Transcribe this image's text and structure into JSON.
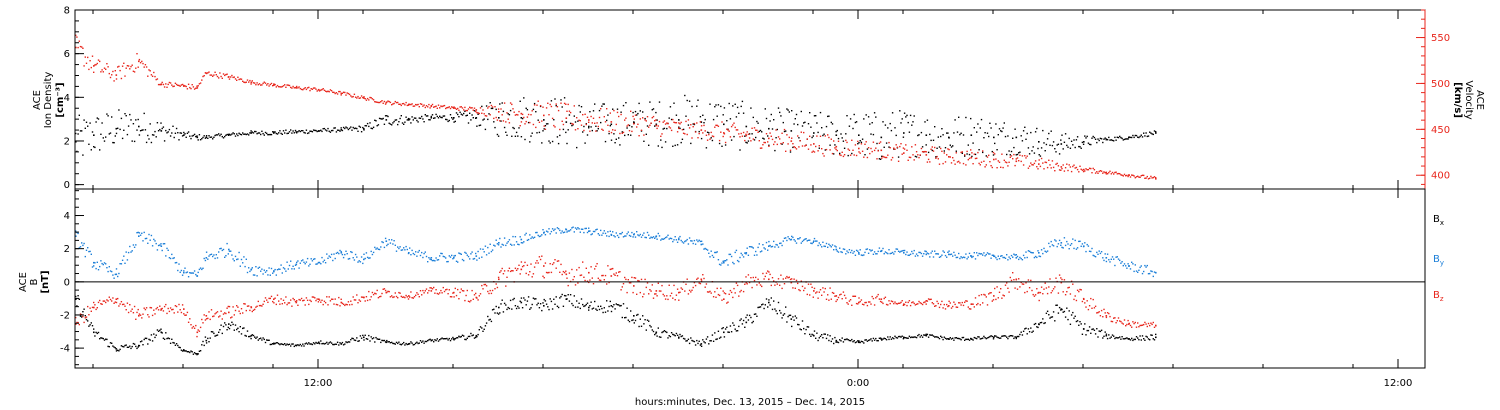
{
  "colors": {
    "black": "#000000",
    "blue": "#1c7fd8",
    "red": "#e8261c",
    "frame": "#000000"
  },
  "xlabel": "hours:minutes, Dec. 13, 2015 – Dec. 14, 2015",
  "chart_data": [
    {
      "type": "scatter",
      "panel": "top",
      "ylabel_left": [
        "ACE",
        "Ion Density",
        "[cm⁻³]"
      ],
      "ylabel_right": [
        "ACE",
        "Velocity",
        "[km/s]"
      ],
      "x_ticks_hours": [
        12,
        24,
        36
      ],
      "x_tick_labels": [
        "12:00",
        "0:00",
        "12:00"
      ],
      "xlim_hours": [
        6.6,
        36.6
      ],
      "left_axis": {
        "ylim": [
          -0.2,
          8.0
        ],
        "ticks": [
          0,
          2,
          4,
          6,
          8
        ]
      },
      "right_axis": {
        "ylim": [
          385,
          580
        ],
        "ticks": [
          400,
          450,
          500,
          550
        ]
      },
      "grid": false,
      "series": [
        {
          "axis": "left",
          "color": "#000000",
          "x": [
            6.6,
            7.0,
            7.5,
            8.0,
            8.5,
            9.0,
            9.3,
            9.5,
            10.0,
            10.5,
            11.0,
            11.5,
            12.0,
            12.5,
            13.0,
            13.5,
            14.0,
            14.5,
            15.0,
            15.5,
            16.0,
            16.5,
            17.0,
            17.5,
            18.0,
            18.5,
            19.0,
            19.5,
            20.0,
            20.5,
            21.0,
            21.5,
            22.0,
            22.5,
            23.0,
            23.5,
            24.0,
            24.5,
            25.0,
            25.5,
            26.0,
            26.5,
            27.0,
            27.5,
            28.0,
            28.5,
            29.0,
            29.5,
            30.0,
            30.6
          ],
          "y": [
            2.0,
            2.3,
            2.6,
            2.7,
            2.5,
            2.3,
            2.2,
            2.2,
            2.3,
            2.4,
            2.4,
            2.45,
            2.5,
            2.55,
            2.6,
            3.0,
            3.0,
            3.1,
            3.1,
            3.1,
            3.1,
            3.1,
            3.0,
            2.9,
            2.7,
            2.8,
            2.9,
            2.8,
            3.0,
            2.9,
            2.8,
            2.7,
            2.6,
            2.5,
            2.4,
            2.3,
            2.3,
            2.2,
            2.4,
            2.3,
            2.2,
            2.3,
            2.2,
            2.2,
            2.0,
            1.9,
            2.0,
            2.1,
            2.2,
            2.4
          ],
          "spread": [
            1.2,
            1.0,
            0.9,
            0.8,
            0.5,
            0.2,
            0.15,
            0.1,
            0.1,
            0.1,
            0.1,
            0.1,
            0.1,
            0.1,
            0.15,
            0.3,
            0.2,
            0.15,
            0.2,
            0.4,
            0.9,
            1.1,
            1.1,
            1.2,
            1.1,
            1.0,
            1.0,
            1.1,
            1.2,
            1.2,
            1.3,
            1.1,
            1.0,
            1.0,
            1.0,
            1.0,
            1.1,
            1.2,
            1.1,
            1.0,
            1.0,
            1.0,
            0.9,
            0.8,
            0.7,
            0.5,
            0.3,
            0.1,
            0.1,
            0.1
          ]
        },
        {
          "axis": "right",
          "color": "#e8261c",
          "x": [
            6.6,
            7.0,
            7.5,
            8.0,
            8.5,
            9.0,
            9.3,
            9.5,
            10.0,
            10.5,
            11.0,
            11.5,
            12.0,
            12.5,
            13.0,
            13.5,
            14.0,
            14.5,
            15.0,
            15.5,
            16.0,
            16.5,
            17.0,
            17.5,
            18.0,
            18.5,
            19.0,
            19.5,
            20.0,
            20.5,
            21.0,
            21.5,
            22.0,
            22.5,
            23.0,
            23.5,
            24.0,
            24.5,
            25.0,
            25.5,
            26.0,
            26.5,
            27.0,
            27.5,
            28.0,
            28.5,
            29.0,
            29.5,
            30.0,
            30.6
          ],
          "y": [
            540,
            520,
            510,
            525,
            500,
            498,
            496,
            512,
            508,
            502,
            499,
            496,
            494,
            490,
            485,
            480,
            478,
            476,
            474,
            472,
            470,
            468,
            466,
            463,
            461,
            459,
            457,
            455,
            452,
            450,
            447,
            444,
            441,
            438,
            435,
            432,
            430,
            428,
            425,
            423,
            421,
            420,
            418,
            416,
            413,
            410,
            407,
            404,
            401,
            397
          ],
          "spread": [
            14,
            10,
            8,
            10,
            3,
            3,
            3,
            3,
            3,
            2,
            2,
            2,
            2,
            2,
            2,
            2,
            2,
            2,
            2,
            3,
            10,
            14,
            16,
            16,
            15,
            14,
            13,
            12,
            10,
            10,
            12,
            12,
            12,
            12,
            12,
            12,
            10,
            10,
            10,
            10,
            9,
            9,
            9,
            8,
            7,
            5,
            3,
            2,
            2,
            2
          ]
        }
      ]
    },
    {
      "type": "scatter",
      "panel": "bottom",
      "ylabel_left": [
        "ACE",
        "B",
        "[nT]"
      ],
      "x_ticks_hours": [
        12,
        24,
        36
      ],
      "x_tick_labels": [
        "12:00",
        "0:00",
        "12:00"
      ],
      "xlim_hours": [
        6.6,
        36.6
      ],
      "left_axis": {
        "ylim": [
          -5.2,
          5.6
        ],
        "ticks": [
          -4,
          -2,
          0,
          2,
          4
        ]
      },
      "zero_line": 0,
      "grid": false,
      "legend_position": "right",
      "series": [
        {
          "name": "Bx",
          "label_main": "B",
          "label_sub": "x",
          "color": "#000000",
          "x": [
            6.6,
            7.0,
            7.5,
            8.0,
            8.5,
            9.0,
            9.3,
            9.5,
            10.0,
            10.5,
            11.0,
            11.5,
            12.0,
            12.5,
            13.0,
            13.5,
            14.0,
            14.5,
            15.0,
            15.5,
            16.0,
            16.5,
            17.0,
            17.5,
            18.0,
            18.5,
            19.0,
            19.5,
            20.0,
            20.5,
            21.0,
            21.5,
            22.0,
            22.5,
            23.0,
            23.5,
            24.0,
            24.5,
            25.0,
            25.5,
            26.0,
            26.5,
            27.0,
            27.5,
            28.0,
            28.5,
            29.0,
            29.5,
            30.0,
            30.6
          ],
          "y": [
            -1.0,
            -3.0,
            -4.0,
            -3.8,
            -3.0,
            -4.1,
            -4.3,
            -3.5,
            -2.5,
            -3.2,
            -3.7,
            -3.8,
            -3.6,
            -3.7,
            -3.3,
            -3.6,
            -3.7,
            -3.5,
            -3.4,
            -3.2,
            -1.5,
            -1.2,
            -1.4,
            -1.0,
            -1.5,
            -1.4,
            -2.0,
            -3.0,
            -3.3,
            -3.7,
            -3.0,
            -2.4,
            -1.2,
            -2.2,
            -3.2,
            -3.5,
            -3.6,
            -3.4,
            -3.3,
            -3.2,
            -3.4,
            -3.4,
            -3.3,
            -3.3,
            -2.5,
            -1.6,
            -2.8,
            -3.2,
            -3.4,
            -3.3
          ],
          "spread": [
            0.6,
            0.3,
            0.2,
            0.2,
            0.3,
            0.1,
            0.1,
            0.3,
            0.3,
            0.2,
            0.1,
            0.1,
            0.1,
            0.1,
            0.2,
            0.1,
            0.1,
            0.1,
            0.1,
            0.2,
            0.4,
            0.4,
            0.4,
            0.4,
            0.4,
            0.4,
            0.5,
            0.3,
            0.2,
            0.2,
            0.3,
            0.4,
            0.4,
            0.5,
            0.3,
            0.2,
            0.1,
            0.1,
            0.1,
            0.1,
            0.1,
            0.1,
            0.1,
            0.1,
            0.4,
            0.5,
            0.4,
            0.2,
            0.1,
            0.2
          ]
        },
        {
          "name": "By",
          "label_main": "B",
          "label_sub": "y",
          "color": "#1c7fd8",
          "x": [
            6.6,
            7.0,
            7.5,
            8.0,
            8.5,
            9.0,
            9.3,
            9.5,
            10.0,
            10.5,
            11.0,
            11.5,
            12.0,
            12.5,
            13.0,
            13.5,
            14.0,
            14.5,
            15.0,
            15.5,
            16.0,
            16.5,
            17.0,
            17.5,
            18.0,
            18.5,
            19.0,
            19.5,
            20.0,
            20.5,
            21.0,
            21.5,
            22.0,
            22.5,
            23.0,
            23.5,
            24.0,
            24.5,
            25.0,
            25.5,
            26.0,
            26.5,
            27.0,
            27.5,
            28.0,
            28.5,
            29.0,
            29.5,
            30.0,
            30.6
          ],
          "y": [
            2.8,
            1.2,
            0.5,
            2.8,
            2.2,
            0.6,
            0.4,
            1.5,
            2.0,
            0.8,
            0.7,
            1.1,
            1.2,
            1.8,
            1.4,
            2.5,
            1.8,
            1.5,
            1.5,
            1.6,
            2.4,
            2.6,
            3.0,
            3.2,
            3.1,
            2.9,
            2.9,
            2.8,
            2.6,
            2.3,
            1.2,
            1.8,
            2.2,
            2.6,
            2.5,
            2.0,
            1.8,
            1.9,
            1.8,
            1.7,
            1.7,
            1.6,
            1.6,
            1.5,
            1.8,
            2.4,
            2.2,
            1.5,
            1.0,
            0.6
          ],
          "spread": [
            0.4,
            0.4,
            0.3,
            0.4,
            0.4,
            0.3,
            0.3,
            0.4,
            0.4,
            0.4,
            0.3,
            0.3,
            0.3,
            0.3,
            0.3,
            0.3,
            0.3,
            0.3,
            0.3,
            0.3,
            0.3,
            0.3,
            0.2,
            0.2,
            0.2,
            0.2,
            0.2,
            0.2,
            0.2,
            0.3,
            0.4,
            0.4,
            0.3,
            0.2,
            0.2,
            0.2,
            0.2,
            0.2,
            0.2,
            0.2,
            0.2,
            0.2,
            0.2,
            0.2,
            0.3,
            0.4,
            0.3,
            0.3,
            0.3,
            0.3
          ]
        },
        {
          "name": "Bz",
          "label_main": "B",
          "label_sub": "z",
          "color": "#e8261c",
          "x": [
            6.6,
            7.0,
            7.5,
            8.0,
            8.5,
            9.0,
            9.3,
            9.5,
            10.0,
            10.5,
            11.0,
            11.5,
            12.0,
            12.5,
            13.0,
            13.5,
            14.0,
            14.5,
            15.0,
            15.5,
            16.0,
            16.5,
            17.0,
            17.5,
            18.0,
            18.5,
            19.0,
            19.5,
            20.0,
            20.5,
            21.0,
            21.5,
            22.0,
            22.5,
            23.0,
            23.5,
            24.0,
            24.5,
            25.0,
            25.5,
            26.0,
            26.5,
            27.0,
            27.5,
            28.0,
            28.5,
            29.0,
            29.5,
            30.0,
            30.6
          ],
          "y": [
            -2.5,
            -1.5,
            -1.0,
            -2.0,
            -1.6,
            -1.6,
            -3.0,
            -2.0,
            -1.8,
            -1.5,
            -1.0,
            -1.2,
            -1.0,
            -1.2,
            -0.9,
            -0.6,
            -0.8,
            -0.5,
            -0.6,
            -0.9,
            0.2,
            0.8,
            1.0,
            0.5,
            0.6,
            0.4,
            -0.2,
            -0.5,
            -0.6,
            0.2,
            -1.0,
            0.0,
            0.2,
            0.0,
            -0.5,
            -0.8,
            -1.2,
            -1.0,
            -1.3,
            -1.1,
            -1.4,
            -1.3,
            -0.8,
            0.2,
            -0.6,
            0.0,
            -1.0,
            -2.0,
            -2.5,
            -2.6
          ],
          "spread": [
            0.4,
            0.4,
            0.3,
            0.4,
            0.3,
            0.3,
            0.3,
            0.3,
            0.4,
            0.3,
            0.3,
            0.3,
            0.3,
            0.3,
            0.3,
            0.3,
            0.2,
            0.2,
            0.3,
            0.4,
            0.6,
            0.7,
            0.7,
            0.7,
            0.7,
            0.6,
            0.6,
            0.5,
            0.5,
            0.5,
            0.5,
            0.5,
            0.5,
            0.4,
            0.4,
            0.4,
            0.3,
            0.3,
            0.2,
            0.2,
            0.3,
            0.3,
            0.5,
            0.6,
            0.6,
            0.6,
            0.5,
            0.3,
            0.2,
            0.2
          ]
        }
      ]
    }
  ]
}
